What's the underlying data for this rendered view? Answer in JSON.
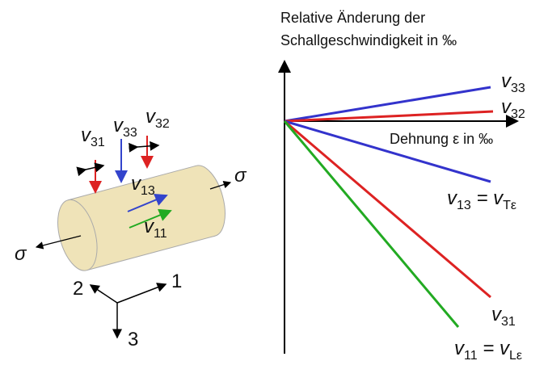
{
  "chart": {
    "title_lines": [
      "Relative Änderung der",
      "Schallgeschwindigkeit in ‰"
    ],
    "x_label": "Dehnung ε in ‰",
    "curves": [
      {
        "base": "v",
        "sub": "33"
      },
      {
        "base": "v",
        "sub": "32"
      },
      {
        "base": "v",
        "sub": "13",
        "rest": " = v",
        "sub2": "Tε"
      },
      {
        "base": "v",
        "sub": "31"
      },
      {
        "base": "v",
        "sub": "11",
        "rest": " = v",
        "sub2": "Lε"
      }
    ]
  },
  "specimen": {
    "waves": [
      {
        "base": "v",
        "sub": "31"
      },
      {
        "base": "v",
        "sub": "33"
      },
      {
        "base": "v",
        "sub": "32"
      },
      {
        "base": "v",
        "sub": "13"
      },
      {
        "base": "v",
        "sub": "11"
      }
    ],
    "stress_right": "σ",
    "stress_left": "σ",
    "axes": [
      "2",
      "1",
      "3"
    ]
  }
}
